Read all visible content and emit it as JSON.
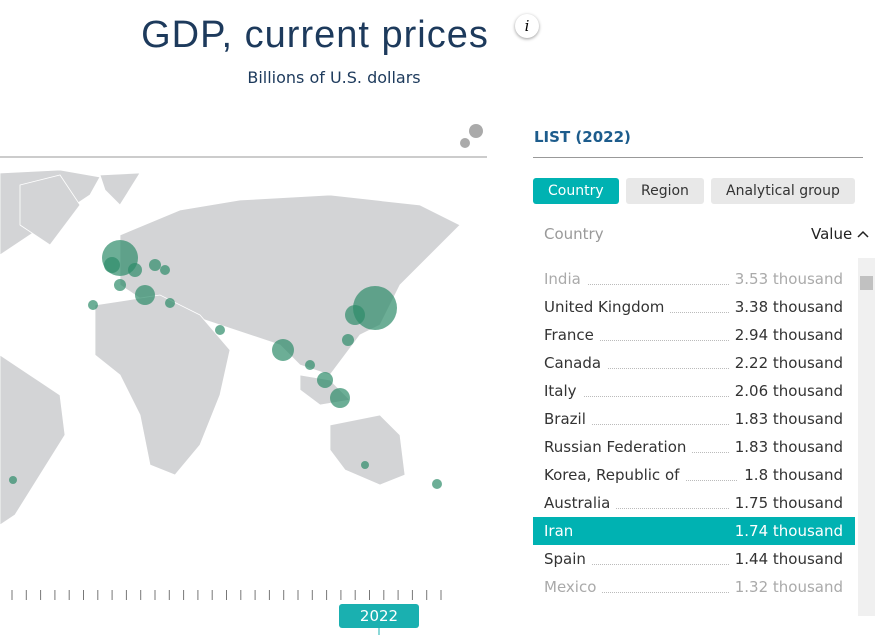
{
  "header": {
    "title": "GDP, current prices",
    "subtitle": "Billions of U.S. dollars",
    "info": "i"
  },
  "list": {
    "title": "LIST (2022)",
    "tabs": [
      "Country",
      "Region",
      "Analytical group"
    ],
    "columns": [
      "Country",
      "Value"
    ],
    "rows": [
      [
        "India",
        "3.53 thousand"
      ],
      [
        "United Kingdom",
        "3.38 thousand"
      ],
      [
        "France",
        "2.94 thousand"
      ],
      [
        "Canada",
        "2.22 thousand"
      ],
      [
        "Italy",
        "2.06 thousand"
      ],
      [
        "Brazil",
        "1.83 thousand"
      ],
      [
        "Russian Federation",
        "1.83 thousand"
      ],
      [
        "Korea, Republic of",
        "1.8 thousand"
      ],
      [
        "Australia",
        "1.75 thousand"
      ],
      [
        "Iran",
        "1.74 thousand"
      ],
      [
        "Spain",
        "1.44 thousand"
      ],
      [
        "Mexico",
        "1.32 thousand"
      ]
    ],
    "selected": "Iran"
  },
  "timeline": {
    "year": "2022"
  }
}
